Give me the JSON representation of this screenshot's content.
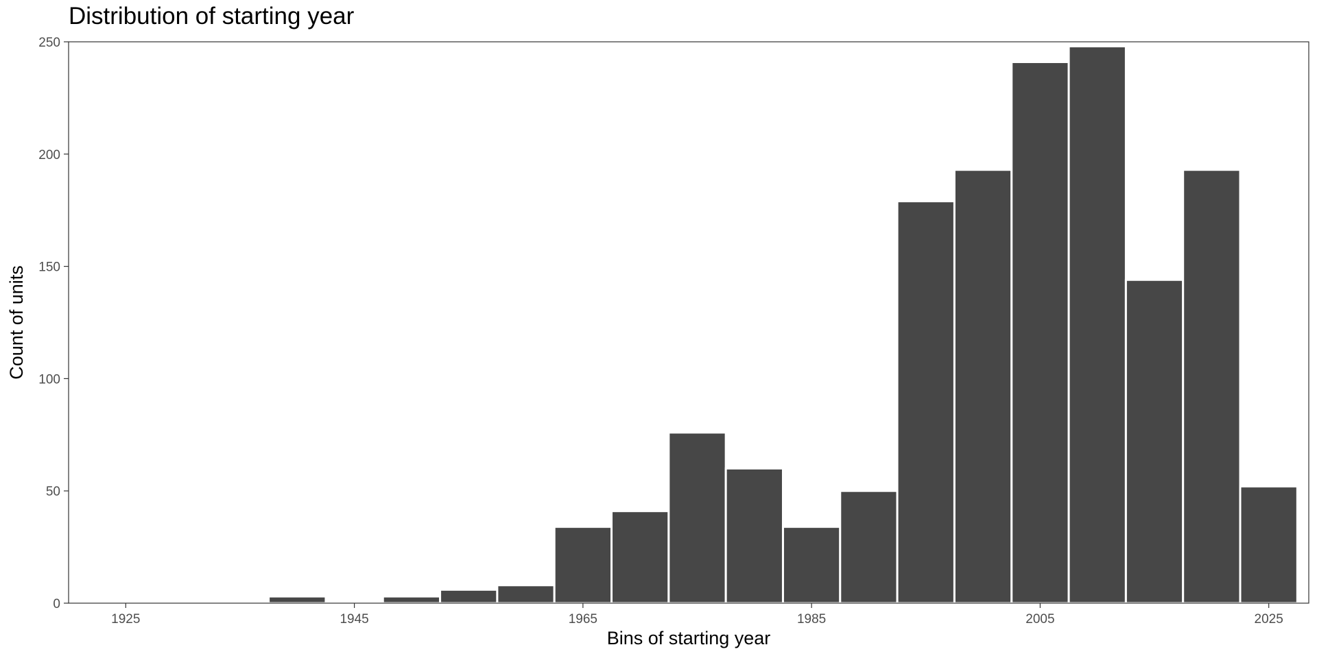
{
  "chart_data": {
    "type": "bar",
    "title": "Distribution of starting year",
    "xlabel": "Bins of starting year",
    "ylabel": "Count of units",
    "bin_width": 5,
    "bins": [
      {
        "start": 1922.5,
        "end": 1927.5,
        "count": 0
      },
      {
        "start": 1927.5,
        "end": 1932.5,
        "count": 0
      },
      {
        "start": 1937.5,
        "end": 1942.5,
        "count": 3
      },
      {
        "start": 1947.5,
        "end": 1952.5,
        "count": 3
      },
      {
        "start": 1952.5,
        "end": 1957.5,
        "count": 6
      },
      {
        "start": 1957.5,
        "end": 1962.5,
        "count": 8
      },
      {
        "start": 1962.5,
        "end": 1967.5,
        "count": 34
      },
      {
        "start": 1967.5,
        "end": 1972.5,
        "count": 41
      },
      {
        "start": 1972.5,
        "end": 1977.5,
        "count": 76
      },
      {
        "start": 1977.5,
        "end": 1982.5,
        "count": 60
      },
      {
        "start": 1982.5,
        "end": 1987.5,
        "count": 34
      },
      {
        "start": 1987.5,
        "end": 1992.5,
        "count": 50
      },
      {
        "start": 1992.5,
        "end": 1997.5,
        "count": 179
      },
      {
        "start": 1997.5,
        "end": 2002.5,
        "count": 193
      },
      {
        "start": 2002.5,
        "end": 2007.5,
        "count": 241
      },
      {
        "start": 2007.5,
        "end": 2012.5,
        "count": 248
      },
      {
        "start": 2012.5,
        "end": 2017.5,
        "count": 144
      },
      {
        "start": 2017.5,
        "end": 2022.5,
        "count": 193
      },
      {
        "start": 2022.5,
        "end": 2027.5,
        "count": 52
      }
    ],
    "xlim": [
      1920,
      2028.5
    ],
    "ylim": [
      0,
      250
    ],
    "x_ticks": [
      1925,
      1945,
      1965,
      1985,
      2005,
      2025
    ],
    "y_ticks": [
      0,
      50,
      100,
      150,
      200,
      250
    ],
    "grid": false,
    "legend": "none",
    "colors": {
      "bar_fill": "#474747",
      "bar_outline": "#ffffff",
      "panel_border": "#333333"
    }
  }
}
